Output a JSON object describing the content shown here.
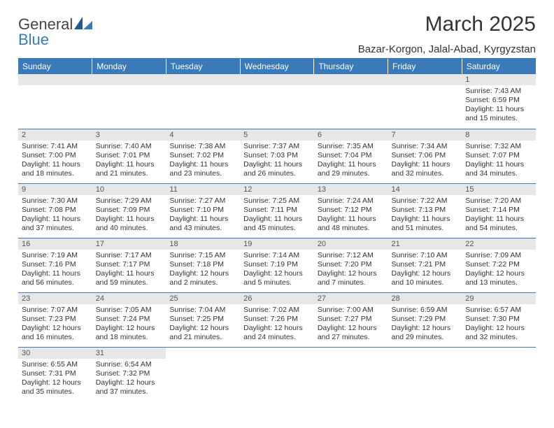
{
  "brand": {
    "text1": "General",
    "text2": "Blue"
  },
  "title": "March 2025",
  "subtitle": "Bazar-Korgon, Jalal-Abad, Kyrgyzstan",
  "colors": {
    "accent": "#3a7ab8",
    "header_bg": "#3a7ab8",
    "daynum_bg": "#e7e7e7"
  },
  "weekdays": [
    "Sunday",
    "Monday",
    "Tuesday",
    "Wednesday",
    "Thursday",
    "Friday",
    "Saturday"
  ],
  "weeks": [
    [
      null,
      null,
      null,
      null,
      null,
      null,
      {
        "n": "1",
        "sr": "Sunrise: 7:43 AM",
        "ss": "Sunset: 6:59 PM",
        "dl": "Daylight: 11 hours and 15 minutes."
      }
    ],
    [
      {
        "n": "2",
        "sr": "Sunrise: 7:41 AM",
        "ss": "Sunset: 7:00 PM",
        "dl": "Daylight: 11 hours and 18 minutes."
      },
      {
        "n": "3",
        "sr": "Sunrise: 7:40 AM",
        "ss": "Sunset: 7:01 PM",
        "dl": "Daylight: 11 hours and 21 minutes."
      },
      {
        "n": "4",
        "sr": "Sunrise: 7:38 AM",
        "ss": "Sunset: 7:02 PM",
        "dl": "Daylight: 11 hours and 23 minutes."
      },
      {
        "n": "5",
        "sr": "Sunrise: 7:37 AM",
        "ss": "Sunset: 7:03 PM",
        "dl": "Daylight: 11 hours and 26 minutes."
      },
      {
        "n": "6",
        "sr": "Sunrise: 7:35 AM",
        "ss": "Sunset: 7:04 PM",
        "dl": "Daylight: 11 hours and 29 minutes."
      },
      {
        "n": "7",
        "sr": "Sunrise: 7:34 AM",
        "ss": "Sunset: 7:06 PM",
        "dl": "Daylight: 11 hours and 32 minutes."
      },
      {
        "n": "8",
        "sr": "Sunrise: 7:32 AM",
        "ss": "Sunset: 7:07 PM",
        "dl": "Daylight: 11 hours and 34 minutes."
      }
    ],
    [
      {
        "n": "9",
        "sr": "Sunrise: 7:30 AM",
        "ss": "Sunset: 7:08 PM",
        "dl": "Daylight: 11 hours and 37 minutes."
      },
      {
        "n": "10",
        "sr": "Sunrise: 7:29 AM",
        "ss": "Sunset: 7:09 PM",
        "dl": "Daylight: 11 hours and 40 minutes."
      },
      {
        "n": "11",
        "sr": "Sunrise: 7:27 AM",
        "ss": "Sunset: 7:10 PM",
        "dl": "Daylight: 11 hours and 43 minutes."
      },
      {
        "n": "12",
        "sr": "Sunrise: 7:25 AM",
        "ss": "Sunset: 7:11 PM",
        "dl": "Daylight: 11 hours and 45 minutes."
      },
      {
        "n": "13",
        "sr": "Sunrise: 7:24 AM",
        "ss": "Sunset: 7:12 PM",
        "dl": "Daylight: 11 hours and 48 minutes."
      },
      {
        "n": "14",
        "sr": "Sunrise: 7:22 AM",
        "ss": "Sunset: 7:13 PM",
        "dl": "Daylight: 11 hours and 51 minutes."
      },
      {
        "n": "15",
        "sr": "Sunrise: 7:20 AM",
        "ss": "Sunset: 7:14 PM",
        "dl": "Daylight: 11 hours and 54 minutes."
      }
    ],
    [
      {
        "n": "16",
        "sr": "Sunrise: 7:19 AM",
        "ss": "Sunset: 7:16 PM",
        "dl": "Daylight: 11 hours and 56 minutes."
      },
      {
        "n": "17",
        "sr": "Sunrise: 7:17 AM",
        "ss": "Sunset: 7:17 PM",
        "dl": "Daylight: 11 hours and 59 minutes."
      },
      {
        "n": "18",
        "sr": "Sunrise: 7:15 AM",
        "ss": "Sunset: 7:18 PM",
        "dl": "Daylight: 12 hours and 2 minutes."
      },
      {
        "n": "19",
        "sr": "Sunrise: 7:14 AM",
        "ss": "Sunset: 7:19 PM",
        "dl": "Daylight: 12 hours and 5 minutes."
      },
      {
        "n": "20",
        "sr": "Sunrise: 7:12 AM",
        "ss": "Sunset: 7:20 PM",
        "dl": "Daylight: 12 hours and 7 minutes."
      },
      {
        "n": "21",
        "sr": "Sunrise: 7:10 AM",
        "ss": "Sunset: 7:21 PM",
        "dl": "Daylight: 12 hours and 10 minutes."
      },
      {
        "n": "22",
        "sr": "Sunrise: 7:09 AM",
        "ss": "Sunset: 7:22 PM",
        "dl": "Daylight: 12 hours and 13 minutes."
      }
    ],
    [
      {
        "n": "23",
        "sr": "Sunrise: 7:07 AM",
        "ss": "Sunset: 7:23 PM",
        "dl": "Daylight: 12 hours and 16 minutes."
      },
      {
        "n": "24",
        "sr": "Sunrise: 7:05 AM",
        "ss": "Sunset: 7:24 PM",
        "dl": "Daylight: 12 hours and 18 minutes."
      },
      {
        "n": "25",
        "sr": "Sunrise: 7:04 AM",
        "ss": "Sunset: 7:25 PM",
        "dl": "Daylight: 12 hours and 21 minutes."
      },
      {
        "n": "26",
        "sr": "Sunrise: 7:02 AM",
        "ss": "Sunset: 7:26 PM",
        "dl": "Daylight: 12 hours and 24 minutes."
      },
      {
        "n": "27",
        "sr": "Sunrise: 7:00 AM",
        "ss": "Sunset: 7:27 PM",
        "dl": "Daylight: 12 hours and 27 minutes."
      },
      {
        "n": "28",
        "sr": "Sunrise: 6:59 AM",
        "ss": "Sunset: 7:29 PM",
        "dl": "Daylight: 12 hours and 29 minutes."
      },
      {
        "n": "29",
        "sr": "Sunrise: 6:57 AM",
        "ss": "Sunset: 7:30 PM",
        "dl": "Daylight: 12 hours and 32 minutes."
      }
    ],
    [
      {
        "n": "30",
        "sr": "Sunrise: 6:55 AM",
        "ss": "Sunset: 7:31 PM",
        "dl": "Daylight: 12 hours and 35 minutes."
      },
      {
        "n": "31",
        "sr": "Sunrise: 6:54 AM",
        "ss": "Sunset: 7:32 PM",
        "dl": "Daylight: 12 hours and 37 minutes."
      },
      null,
      null,
      null,
      null,
      null
    ]
  ]
}
